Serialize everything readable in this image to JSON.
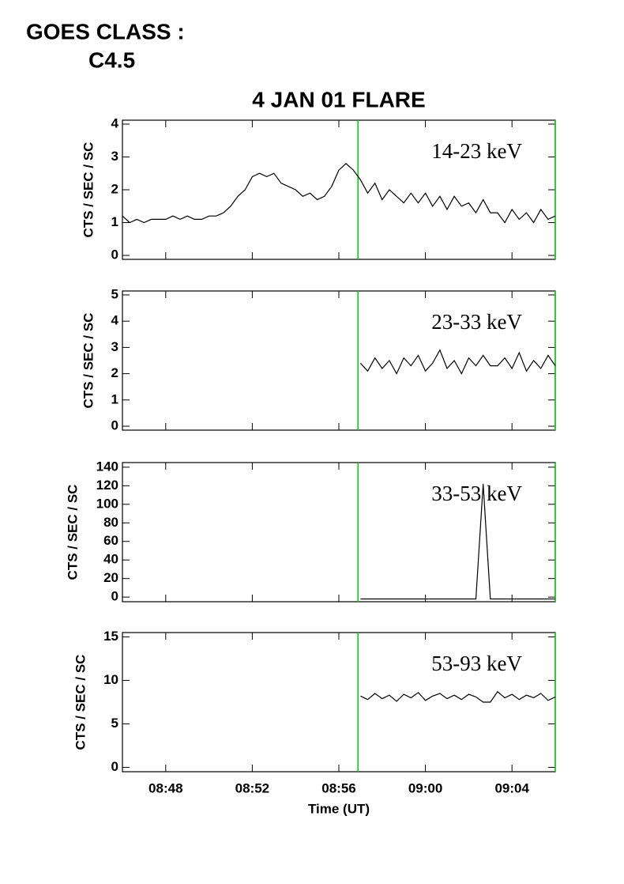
{
  "header": {
    "goes_label": "GOES CLASS :",
    "goes_class": "C4.5"
  },
  "chart_data": [
    {
      "type": "line",
      "title": "4 JAN 01 FLARE",
      "annotation": "14-23 keV",
      "ylabel": "CTS / SEC / SC",
      "color": "#000000",
      "xlim": [
        "08:46",
        "09:06"
      ],
      "xticks": [
        "08:48",
        "08:52",
        "08:56",
        "09:00",
        "09:04"
      ],
      "ylim": [
        -0.12,
        4.12
      ],
      "yticks": [
        0,
        1,
        2,
        3,
        4
      ],
      "vlines": [
        "08:56:53",
        "09:06:00"
      ],
      "vline_color": "#00cc00",
      "x": [
        "08:46:00",
        "08:46:20",
        "08:46:40",
        "08:47:00",
        "08:47:20",
        "08:47:40",
        "08:48:00",
        "08:48:20",
        "08:48:40",
        "08:49:00",
        "08:49:20",
        "08:49:40",
        "08:50:00",
        "08:50:20",
        "08:50:40",
        "08:51:00",
        "08:51:20",
        "08:51:40",
        "08:52:00",
        "08:52:20",
        "08:52:40",
        "08:53:00",
        "08:53:20",
        "08:53:40",
        "08:54:00",
        "08:54:20",
        "08:54:40",
        "08:55:00",
        "08:55:20",
        "08:55:40",
        "08:56:00",
        "08:56:20",
        "08:56:40",
        "08:57:00",
        "08:57:20",
        "08:57:40",
        "08:58:00",
        "08:58:20",
        "08:58:40",
        "08:59:00",
        "08:59:20",
        "08:59:40",
        "09:00:00",
        "09:00:20",
        "09:00:40",
        "09:01:00",
        "09:01:20",
        "09:01:40",
        "09:02:00",
        "09:02:20",
        "09:02:40",
        "09:03:00",
        "09:03:20",
        "09:03:40",
        "09:04:00",
        "09:04:20",
        "09:04:40",
        "09:05:00",
        "09:05:20",
        "09:05:40",
        "09:06:00"
      ],
      "values": [
        1.2,
        1.0,
        1.1,
        1.0,
        1.1,
        1.1,
        1.1,
        1.2,
        1.1,
        1.2,
        1.1,
        1.1,
        1.2,
        1.2,
        1.3,
        1.5,
        1.8,
        2.0,
        2.4,
        2.5,
        2.4,
        2.5,
        2.2,
        2.1,
        2.0,
        1.8,
        1.9,
        1.7,
        1.8,
        2.1,
        2.6,
        2.8,
        2.6,
        2.3,
        1.9,
        2.2,
        1.7,
        2.0,
        1.8,
        1.6,
        1.9,
        1.6,
        1.9,
        1.5,
        1.8,
        1.4,
        1.8,
        1.5,
        1.6,
        1.3,
        1.7,
        1.3,
        1.3,
        1.0,
        1.4,
        1.1,
        1.3,
        1.0,
        1.4,
        1.1,
        1.2
      ]
    },
    {
      "type": "line",
      "annotation": "23-33 keV",
      "ylabel": "CTS / SEC / SC",
      "color": "#000000",
      "xlim": [
        "08:46",
        "09:06"
      ],
      "xticks": [
        "08:48",
        "08:52",
        "08:56",
        "09:00",
        "09:04"
      ],
      "ylim": [
        -0.15,
        5.15
      ],
      "yticks": [
        0,
        1,
        2,
        3,
        4,
        5
      ],
      "vlines": [
        "08:56:53",
        "09:06:00"
      ],
      "vline_color": "#00cc00",
      "x": [
        "08:57:00",
        "08:57:20",
        "08:57:40",
        "08:58:00",
        "08:58:20",
        "08:58:40",
        "08:59:00",
        "08:59:20",
        "08:59:40",
        "09:00:00",
        "09:00:20",
        "09:00:40",
        "09:01:00",
        "09:01:20",
        "09:01:40",
        "09:02:00",
        "09:02:20",
        "09:02:40",
        "09:03:00",
        "09:03:20",
        "09:03:40",
        "09:04:00",
        "09:04:20",
        "09:04:40",
        "09:05:00",
        "09:05:20",
        "09:05:40",
        "09:06:00"
      ],
      "values": [
        2.4,
        2.1,
        2.6,
        2.2,
        2.5,
        2.0,
        2.6,
        2.3,
        2.7,
        2.1,
        2.4,
        2.9,
        2.2,
        2.5,
        2.0,
        2.6,
        2.3,
        2.7,
        2.3,
        2.3,
        2.6,
        2.2,
        2.8,
        2.1,
        2.5,
        2.2,
        2.7,
        2.3
      ]
    },
    {
      "type": "line",
      "annotation": "33-53 keV",
      "ylabel": "CTS / SEC / SC",
      "color": "#000000",
      "xlim": [
        "08:46",
        "09:06"
      ],
      "xticks": [
        "08:48",
        "08:52",
        "08:56",
        "09:00",
        "09:04"
      ],
      "ylim": [
        -5,
        145
      ],
      "yticks": [
        0,
        20,
        40,
        60,
        80,
        100,
        120,
        140
      ],
      "vlines": [
        "08:56:53",
        "09:06:00"
      ],
      "vline_color": "#00cc00",
      "x": [
        "08:57:00",
        "08:57:20",
        "08:57:40",
        "08:58:00",
        "08:58:20",
        "08:58:40",
        "08:59:00",
        "08:59:20",
        "08:59:40",
        "09:00:00",
        "09:00:20",
        "09:00:40",
        "09:01:00",
        "09:01:20",
        "09:01:40",
        "09:02:00",
        "09:02:20",
        "09:02:40",
        "09:03:00",
        "09:03:20",
        "09:03:40",
        "09:04:00",
        "09:04:20",
        "09:04:40",
        "09:05:00",
        "09:05:20",
        "09:05:40",
        "09:06:00"
      ],
      "values": [
        -2,
        -2,
        -2,
        -2,
        -2,
        -2,
        -2,
        -2,
        -2,
        -2,
        -2,
        -2,
        -2,
        -2,
        -2,
        -2,
        -2,
        122,
        -2,
        -2,
        -2,
        -2,
        -2,
        -2,
        -2,
        -2,
        -2,
        -2
      ]
    },
    {
      "type": "line",
      "annotation": "53-93 keV",
      "ylabel": "CTS / SEC / SC",
      "xlabel": "Time (UT)",
      "color": "#000000",
      "xlim": [
        "08:46",
        "09:06"
      ],
      "xticks": [
        "08:48",
        "08:52",
        "08:56",
        "09:00",
        "09:04"
      ],
      "ylim": [
        -0.5,
        15.5
      ],
      "yticks": [
        0,
        5,
        10,
        15
      ],
      "vlines": [
        "08:56:53",
        "09:06:00"
      ],
      "vline_color": "#00cc00",
      "x": [
        "08:57:00",
        "08:57:20",
        "08:57:40",
        "08:58:00",
        "08:58:20",
        "08:58:40",
        "08:59:00",
        "08:59:20",
        "08:59:40",
        "09:00:00",
        "09:00:20",
        "09:00:40",
        "09:01:00",
        "09:01:20",
        "09:01:40",
        "09:02:00",
        "09:02:20",
        "09:02:40",
        "09:03:00",
        "09:03:20",
        "09:03:40",
        "09:04:00",
        "09:04:20",
        "09:04:40",
        "09:05:00",
        "09:05:20",
        "09:05:40",
        "09:06:00"
      ],
      "values": [
        8.2,
        7.8,
        8.5,
        7.9,
        8.3,
        7.6,
        8.4,
        8.0,
        8.6,
        7.7,
        8.2,
        8.5,
        7.9,
        8.3,
        7.8,
        8.4,
        8.1,
        7.5,
        7.5,
        8.7,
        8.0,
        8.4,
        7.8,
        8.3,
        8.0,
        8.5,
        7.7,
        8.1
      ]
    }
  ]
}
